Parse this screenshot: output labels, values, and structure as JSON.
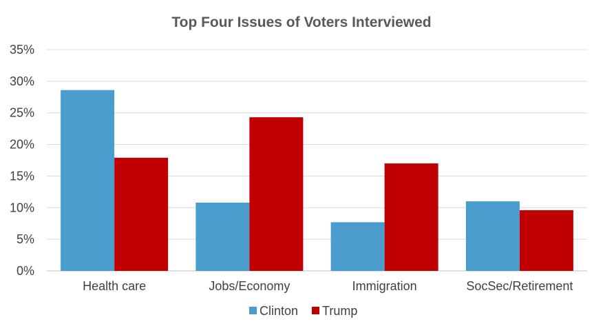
{
  "chart_data": {
    "type": "bar",
    "title": "Top Four Issues of Voters Interviewed",
    "xlabel": "",
    "ylabel": "",
    "categories": [
      "Health care",
      "Jobs/Economy",
      "Immigration",
      "SocSec/Retirement"
    ],
    "series": [
      {
        "name": "Clinton",
        "color": "#4a9ccc",
        "values": [
          28.6,
          10.8,
          7.7,
          11.0
        ]
      },
      {
        "name": "Trump",
        "color": "#c00000",
        "values": [
          17.9,
          24.3,
          17.0,
          9.6
        ]
      }
    ],
    "ylim": [
      0,
      35
    ],
    "yticks": [
      0,
      5,
      10,
      15,
      20,
      25,
      30,
      35
    ],
    "ytick_labels": [
      "0%",
      "5%",
      "10%",
      "15%",
      "20%",
      "25%",
      "30%",
      "35%"
    ],
    "grid": true,
    "legend_position": "bottom"
  }
}
